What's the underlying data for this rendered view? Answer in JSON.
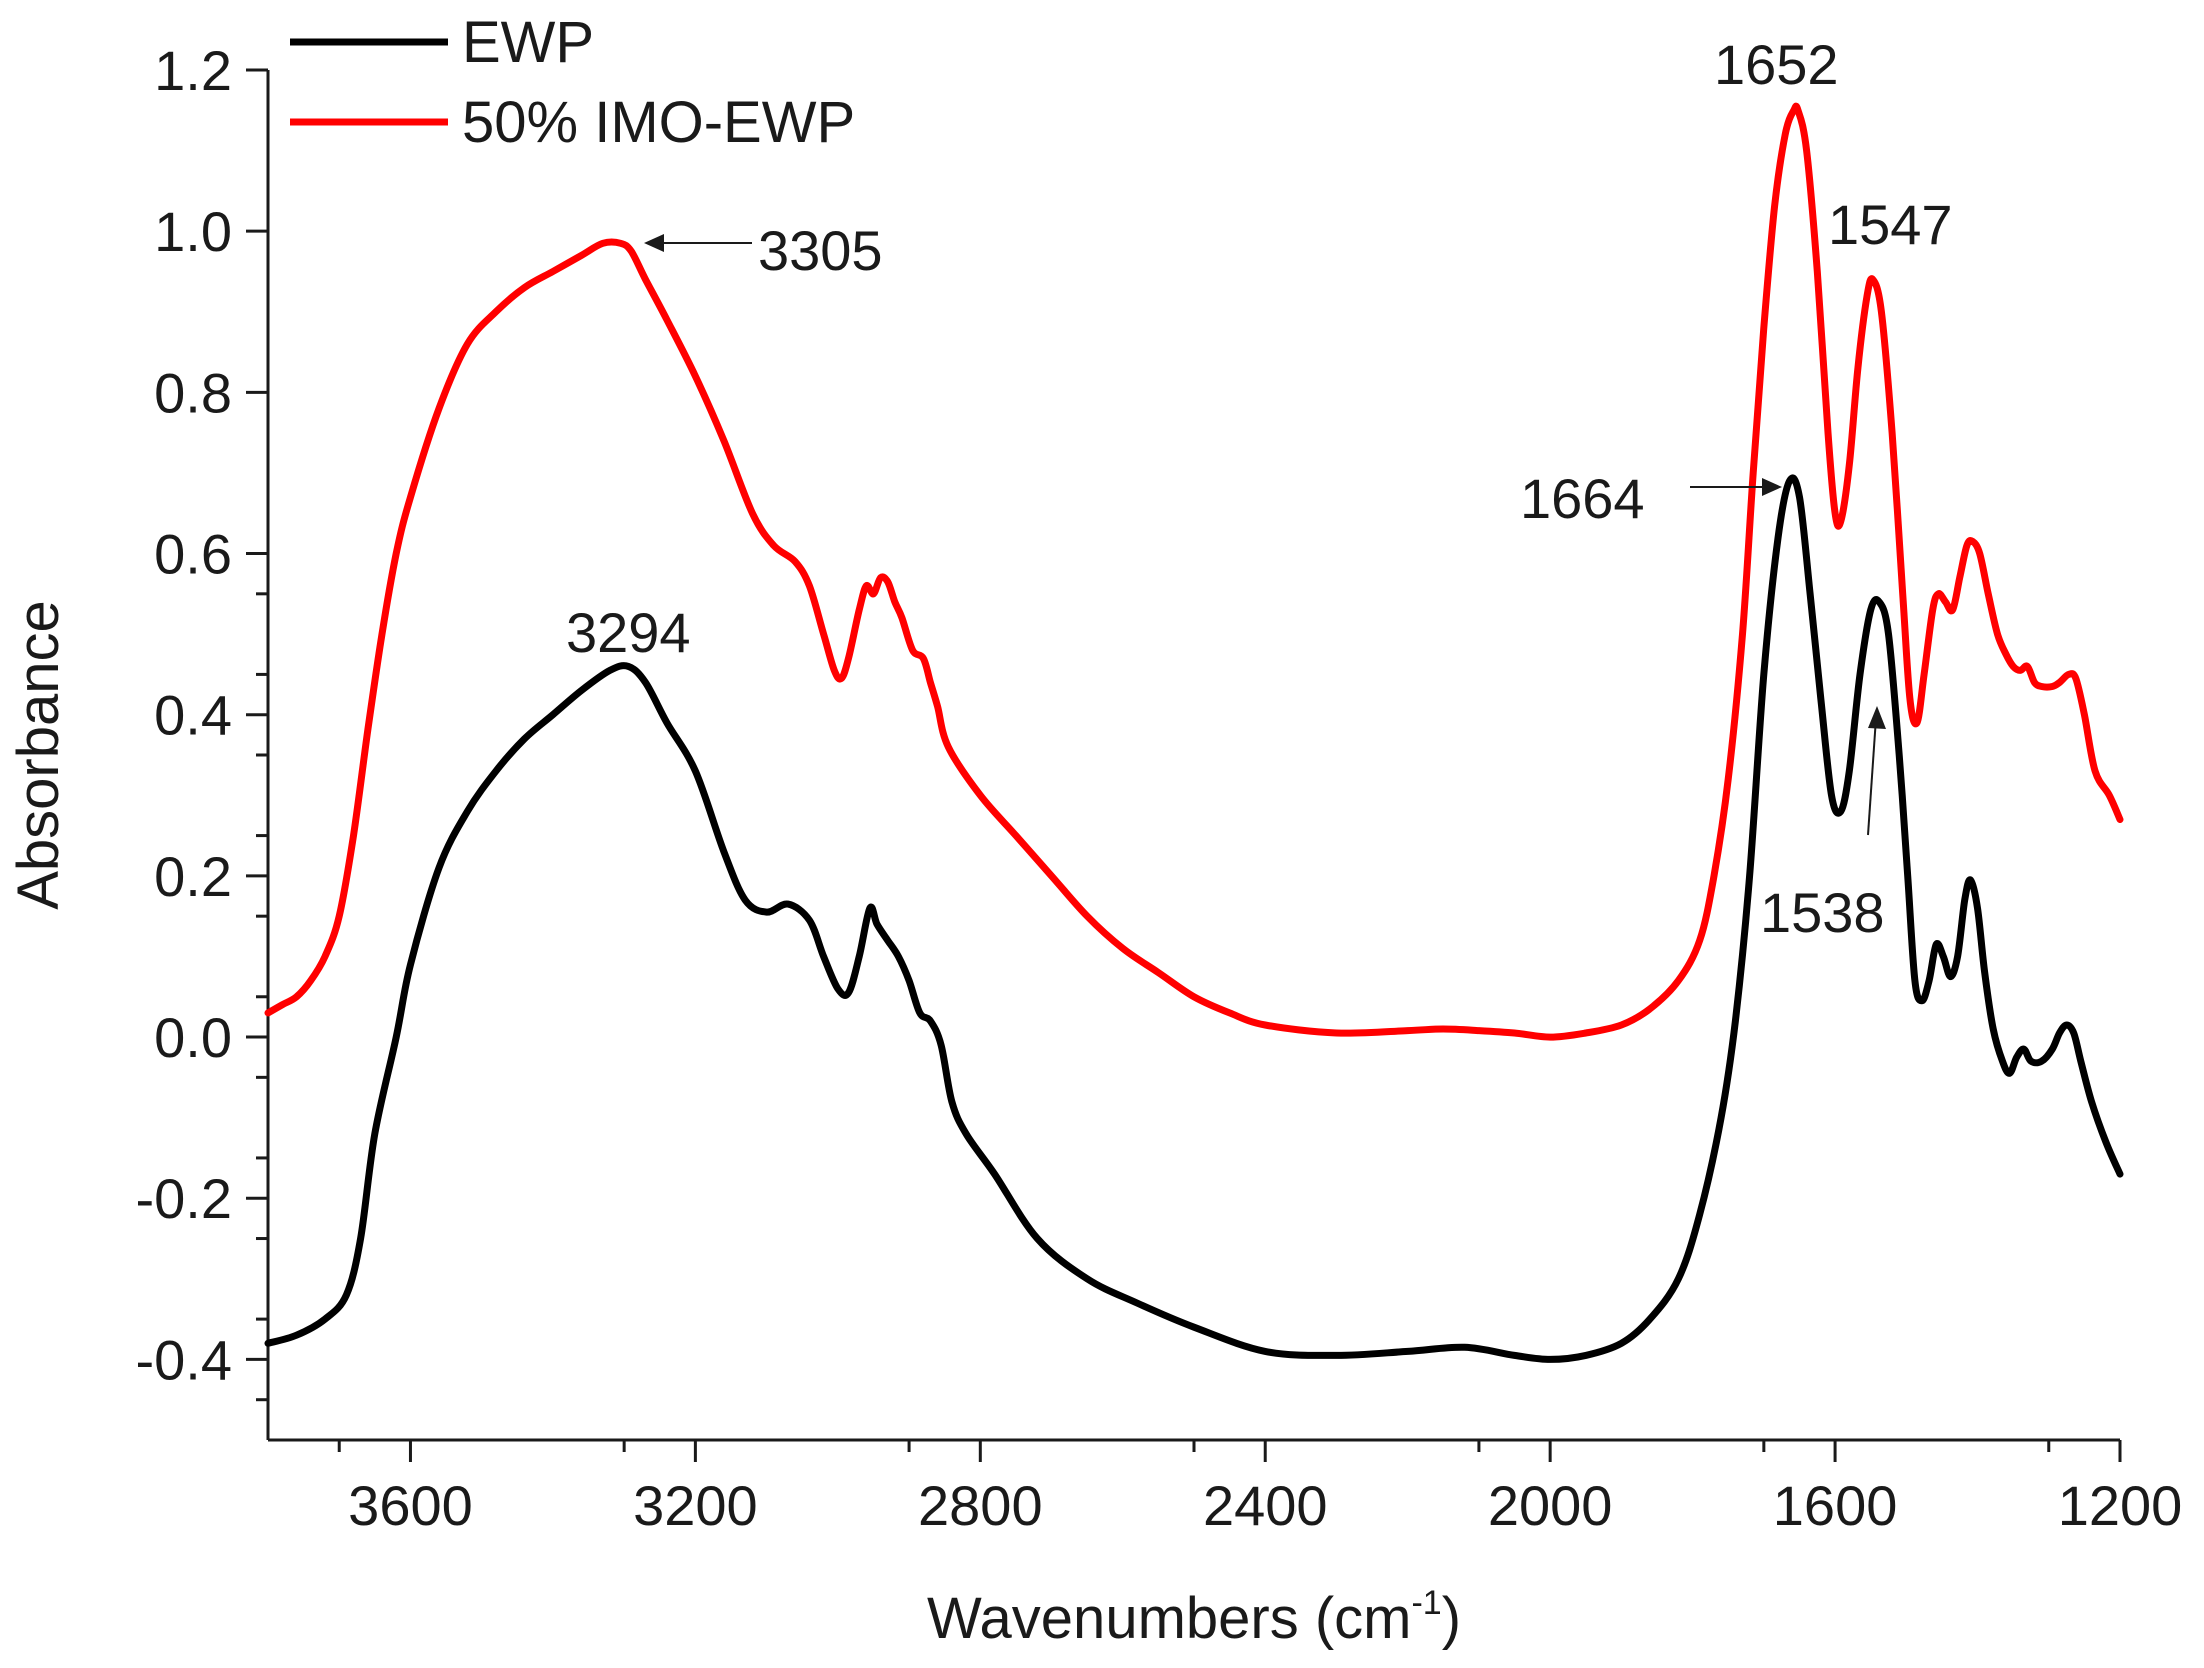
{
  "chart_data": {
    "type": "line",
    "title": "",
    "xlabel": "Wavenumbers (cm",
    "xlabel_sup": "-1",
    "xlabel_close": ")",
    "ylabel": "Absorbance",
    "xlim": [
      3800,
      1200
    ],
    "ylim": [
      -0.5,
      1.2
    ],
    "x_reversed": true,
    "grid": false,
    "legend_position": "top-left",
    "x_ticks": [
      3600,
      3200,
      2800,
      2400,
      2000,
      1600,
      1200
    ],
    "x_tick_labels": [
      "3600",
      "3200",
      "2800",
      "2400",
      "2000",
      "1600",
      "1200"
    ],
    "y_ticks": [
      -0.4,
      -0.2,
      0.0,
      0.2,
      0.4,
      0.6,
      0.8,
      1.0,
      1.2
    ],
    "y_tick_labels": [
      "-0.4",
      "-0.2",
      "0.0",
      "0.2",
      "0.4",
      "0.6",
      "0.8",
      "1.0",
      "1.2"
    ],
    "series": [
      {
        "name": "EWP",
        "color": "#000000",
        "points": [
          [
            3800,
            -0.38
          ],
          [
            3760,
            -0.37
          ],
          [
            3720,
            -0.35
          ],
          [
            3690,
            -0.32
          ],
          [
            3670,
            -0.25
          ],
          [
            3650,
            -0.12
          ],
          [
            3620,
            0.0
          ],
          [
            3600,
            0.09
          ],
          [
            3560,
            0.21
          ],
          [
            3520,
            0.28
          ],
          [
            3480,
            0.33
          ],
          [
            3440,
            0.37
          ],
          [
            3400,
            0.4
          ],
          [
            3360,
            0.43
          ],
          [
            3320,
            0.455
          ],
          [
            3294,
            0.46
          ],
          [
            3270,
            0.44
          ],
          [
            3240,
            0.39
          ],
          [
            3200,
            0.33
          ],
          [
            3160,
            0.23
          ],
          [
            3130,
            0.17
          ],
          [
            3100,
            0.155
          ],
          [
            3070,
            0.165
          ],
          [
            3040,
            0.145
          ],
          [
            3020,
            0.1
          ],
          [
            3000,
            0.06
          ],
          [
            2985,
            0.055
          ],
          [
            2970,
            0.1
          ],
          [
            2955,
            0.16
          ],
          [
            2945,
            0.14
          ],
          [
            2930,
            0.12
          ],
          [
            2915,
            0.1
          ],
          [
            2900,
            0.07
          ],
          [
            2885,
            0.03
          ],
          [
            2870,
            0.02
          ],
          [
            2855,
            -0.01
          ],
          [
            2840,
            -0.08
          ],
          [
            2820,
            -0.12
          ],
          [
            2780,
            -0.17
          ],
          [
            2720,
            -0.25
          ],
          [
            2650,
            -0.3
          ],
          [
            2580,
            -0.33
          ],
          [
            2500,
            -0.36
          ],
          [
            2400,
            -0.39
          ],
          [
            2300,
            -0.395
          ],
          [
            2200,
            -0.39
          ],
          [
            2120,
            -0.385
          ],
          [
            2050,
            -0.395
          ],
          [
            2000,
            -0.4
          ],
          [
            1950,
            -0.395
          ],
          [
            1900,
            -0.38
          ],
          [
            1860,
            -0.35
          ],
          [
            1820,
            -0.3
          ],
          [
            1790,
            -0.22
          ],
          [
            1760,
            -0.1
          ],
          [
            1740,
            0.02
          ],
          [
            1720,
            0.2
          ],
          [
            1700,
            0.45
          ],
          [
            1680,
            0.62
          ],
          [
            1664,
            0.69
          ],
          [
            1650,
            0.67
          ],
          [
            1635,
            0.55
          ],
          [
            1620,
            0.42
          ],
          [
            1605,
            0.3
          ],
          [
            1592,
            0.28
          ],
          [
            1580,
            0.33
          ],
          [
            1565,
            0.45
          ],
          [
            1550,
            0.53
          ],
          [
            1538,
            0.54
          ],
          [
            1525,
            0.5
          ],
          [
            1510,
            0.35
          ],
          [
            1498,
            0.2
          ],
          [
            1488,
            0.07
          ],
          [
            1478,
            0.045
          ],
          [
            1468,
            0.07
          ],
          [
            1458,
            0.115
          ],
          [
            1448,
            0.1
          ],
          [
            1438,
            0.075
          ],
          [
            1428,
            0.1
          ],
          [
            1418,
            0.17
          ],
          [
            1410,
            0.195
          ],
          [
            1400,
            0.16
          ],
          [
            1390,
            0.08
          ],
          [
            1378,
            0.01
          ],
          [
            1365,
            -0.03
          ],
          [
            1355,
            -0.045
          ],
          [
            1345,
            -0.025
          ],
          [
            1335,
            -0.015
          ],
          [
            1325,
            -0.03
          ],
          [
            1310,
            -0.03
          ],
          [
            1295,
            -0.015
          ],
          [
            1285,
            0.005
          ],
          [
            1275,
            0.015
          ],
          [
            1265,
            0.005
          ],
          [
            1255,
            -0.03
          ],
          [
            1240,
            -0.08
          ],
          [
            1220,
            -0.13
          ],
          [
            1200,
            -0.17
          ]
        ]
      },
      {
        "name": "50% IMO-EWP",
        "color": "#ff0000",
        "points": [
          [
            3800,
            0.03
          ],
          [
            3780,
            0.04
          ],
          [
            3760,
            0.05
          ],
          [
            3740,
            0.07
          ],
          [
            3720,
            0.1
          ],
          [
            3700,
            0.15
          ],
          [
            3680,
            0.25
          ],
          [
            3660,
            0.38
          ],
          [
            3640,
            0.5
          ],
          [
            3620,
            0.6
          ],
          [
            3600,
            0.67
          ],
          [
            3560,
            0.78
          ],
          [
            3520,
            0.86
          ],
          [
            3480,
            0.9
          ],
          [
            3440,
            0.93
          ],
          [
            3400,
            0.95
          ],
          [
            3360,
            0.97
          ],
          [
            3330,
            0.985
          ],
          [
            3305,
            0.985
          ],
          [
            3290,
            0.975
          ],
          [
            3270,
            0.94
          ],
          [
            3240,
            0.89
          ],
          [
            3200,
            0.82
          ],
          [
            3160,
            0.74
          ],
          [
            3120,
            0.65
          ],
          [
            3090,
            0.61
          ],
          [
            3060,
            0.59
          ],
          [
            3040,
            0.56
          ],
          [
            3020,
            0.5
          ],
          [
            3005,
            0.455
          ],
          [
            2995,
            0.445
          ],
          [
            2985,
            0.47
          ],
          [
            2970,
            0.53
          ],
          [
            2960,
            0.56
          ],
          [
            2950,
            0.55
          ],
          [
            2940,
            0.57
          ],
          [
            2930,
            0.565
          ],
          [
            2920,
            0.54
          ],
          [
            2910,
            0.52
          ],
          [
            2895,
            0.48
          ],
          [
            2880,
            0.47
          ],
          [
            2870,
            0.44
          ],
          [
            2860,
            0.41
          ],
          [
            2845,
            0.36
          ],
          [
            2800,
            0.3
          ],
          [
            2750,
            0.25
          ],
          [
            2700,
            0.2
          ],
          [
            2650,
            0.15
          ],
          [
            2600,
            0.11
          ],
          [
            2550,
            0.08
          ],
          [
            2500,
            0.05
          ],
          [
            2450,
            0.03
          ],
          [
            2400,
            0.015
          ],
          [
            2300,
            0.005
          ],
          [
            2200,
            0.008
          ],
          [
            2150,
            0.01
          ],
          [
            2100,
            0.008
          ],
          [
            2050,
            0.005
          ],
          [
            2000,
            0.0
          ],
          [
            1950,
            0.005
          ],
          [
            1900,
            0.015
          ],
          [
            1860,
            0.035
          ],
          [
            1820,
            0.07
          ],
          [
            1790,
            0.12
          ],
          [
            1770,
            0.2
          ],
          [
            1750,
            0.32
          ],
          [
            1730,
            0.5
          ],
          [
            1715,
            0.7
          ],
          [
            1700,
            0.88
          ],
          [
            1685,
            1.03
          ],
          [
            1670,
            1.12
          ],
          [
            1658,
            1.15
          ],
          [
            1652,
            1.15
          ],
          [
            1640,
            1.1
          ],
          [
            1625,
            0.95
          ],
          [
            1610,
            0.75
          ],
          [
            1600,
            0.65
          ],
          [
            1592,
            0.64
          ],
          [
            1580,
            0.71
          ],
          [
            1568,
            0.83
          ],
          [
            1555,
            0.92
          ],
          [
            1547,
            0.94
          ],
          [
            1535,
            0.9
          ],
          [
            1520,
            0.75
          ],
          [
            1505,
            0.55
          ],
          [
            1495,
            0.42
          ],
          [
            1485,
            0.39
          ],
          [
            1475,
            0.45
          ],
          [
            1463,
            0.53
          ],
          [
            1455,
            0.55
          ],
          [
            1445,
            0.54
          ],
          [
            1435,
            0.53
          ],
          [
            1425,
            0.57
          ],
          [
            1415,
            0.61
          ],
          [
            1407,
            0.615
          ],
          [
            1397,
            0.6
          ],
          [
            1385,
            0.55
          ],
          [
            1372,
            0.5
          ],
          [
            1360,
            0.475
          ],
          [
            1350,
            0.46
          ],
          [
            1340,
            0.455
          ],
          [
            1330,
            0.46
          ],
          [
            1320,
            0.44
          ],
          [
            1310,
            0.435
          ],
          [
            1295,
            0.435
          ],
          [
            1285,
            0.44
          ],
          [
            1272,
            0.45
          ],
          [
            1262,
            0.445
          ],
          [
            1250,
            0.4
          ],
          [
            1235,
            0.33
          ],
          [
            1215,
            0.3
          ],
          [
            1200,
            0.27
          ]
        ]
      }
    ],
    "annotations": [
      {
        "text": "3305",
        "x": 3305,
        "y": 0.985
      },
      {
        "text": "3294",
        "x": 3294,
        "y": 0.46
      },
      {
        "text": "1652",
        "x": 1652,
        "y": 1.15
      },
      {
        "text": "1547",
        "x": 1547,
        "y": 0.94
      },
      {
        "text": "1664",
        "x": 1664,
        "y": 0.69
      },
      {
        "text": "1538",
        "x": 1538,
        "y": 0.54
      }
    ]
  }
}
